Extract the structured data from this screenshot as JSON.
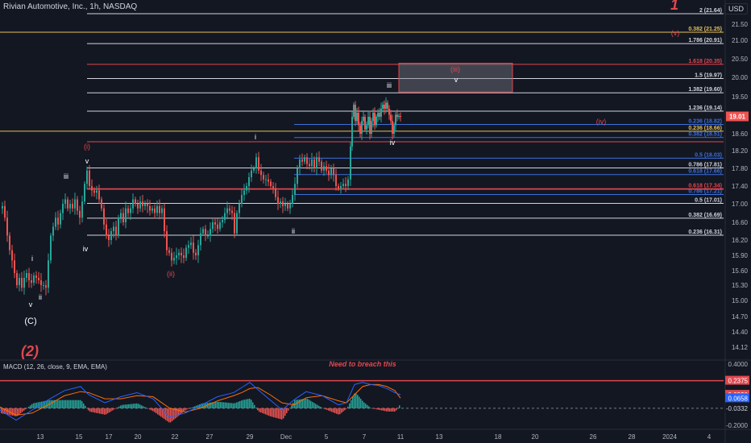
{
  "header": {
    "symbol_line": "Rivian Automotive, Inc., 1h, NASDAQ",
    "currency": "USD"
  },
  "chart_data": {
    "type": "candlestick",
    "price_axis": {
      "ticks": [
        "21.50",
        "21.00",
        "20.50",
        "20.00",
        "19.50",
        "19.00",
        "18.60",
        "18.20",
        "17.80",
        "17.40",
        "17.00",
        "16.60",
        "16.20",
        "15.90",
        "15.60",
        "15.30",
        "15.00",
        "14.70",
        "14.40",
        "14.12"
      ],
      "last_price": "19.01"
    },
    "x_axis": {
      "ticks": [
        "13",
        "15",
        "17",
        "20",
        "22",
        "27",
        "29",
        "Dec",
        "5",
        "7",
        "11",
        "13",
        "18",
        "20",
        "26",
        "28",
        "2024",
        "4"
      ]
    },
    "fib_levels": [
      {
        "label": "2 (21.64)",
        "price": 21.64,
        "color": "#d1d4dc"
      },
      {
        "label": "0.382 (21.25)",
        "price": 21.25,
        "color": "#e5c15a"
      },
      {
        "label": "1.786 (20.91)",
        "price": 20.91,
        "color": "#d1d4dc"
      },
      {
        "label": "1.618 (20.35)",
        "price": 20.35,
        "color": "#e0474f"
      },
      {
        "label": "1.5 (19.97)",
        "price": 19.97,
        "color": "#d1d4dc"
      },
      {
        "label": "1.382 (19.60)",
        "price": 19.6,
        "color": "#d1d4dc"
      },
      {
        "label": "1.236 (19.14)",
        "price": 19.14,
        "color": "#d1d4dc"
      },
      {
        "label": "0.236 (18.82)",
        "price": 18.82,
        "color": "#3d6fd9"
      },
      {
        "label": "0.236 (18.66)",
        "price": 18.66,
        "color": "#e5c15a"
      },
      {
        "label": "0.382 (18.51)",
        "price": 18.51,
        "color": "#3d6fd9"
      },
      {
        "label": "0.5 (18.03)",
        "price": 18.03,
        "color": "#3d6fd9"
      },
      {
        "label": "0.786 (17.81)",
        "price": 17.81,
        "color": "#d1d4dc"
      },
      {
        "label": "0.618 (17.66)",
        "price": 17.66,
        "color": "#3d6fd9"
      },
      {
        "label": "0.618 (17.34)",
        "price": 17.34,
        "color": "#e0474f"
      },
      {
        "label": "0.786 (17.21)",
        "price": 17.21,
        "color": "#3d6fd9"
      },
      {
        "label": "0.5 (17.01)",
        "price": 17.01,
        "color": "#d1d4dc"
      },
      {
        "label": "0.382 (16.69)",
        "price": 16.69,
        "color": "#d1d4dc"
      },
      {
        "label": "0.236 (16.31)",
        "price": 16.31,
        "color": "#d1d4dc"
      }
    ],
    "wave_labels": [
      {
        "text": "1",
        "price": 22.0,
        "color": "#e0474f",
        "style": "italic-bold"
      },
      {
        "text": "(v)",
        "price": 21.15,
        "color": "#e0474f",
        "style": "normal"
      },
      {
        "text": "(iii)",
        "price": 20.2,
        "color": "#e0474f",
        "style": "normal"
      },
      {
        "text": "v",
        "price": 19.95,
        "color": "#ffffff",
        "style": "normal"
      },
      {
        "text": "iii",
        "price": 19.75,
        "color": "#ffffff",
        "style": "normal"
      },
      {
        "text": "(iv)",
        "price": 18.75,
        "color": "#e0474f",
        "style": "normal"
      },
      {
        "text": "iv",
        "price": 18.4,
        "color": "#ffffff",
        "style": "normal"
      },
      {
        "text": "i",
        "price": 18.47,
        "color": "#ffffff",
        "style": "normal"
      },
      {
        "text": "(i)",
        "price": 18.3,
        "color": "#e0474f",
        "style": "normal"
      },
      {
        "text": "v",
        "price": 17.97,
        "color": "#ffffff",
        "style": "normal"
      },
      {
        "text": "iii",
        "price": 17.82,
        "color": "#ffffff",
        "style": "normal"
      },
      {
        "text": "ii",
        "price": 16.4,
        "color": "#ffffff",
        "style": "normal"
      },
      {
        "text": "iv",
        "price": 15.95,
        "color": "#ffffff",
        "style": "normal"
      },
      {
        "text": "i",
        "price": 15.85,
        "color": "#ffffff",
        "style": "normal"
      },
      {
        "text": "(ii)",
        "price": 15.6,
        "color": "#e0474f",
        "style": "normal"
      },
      {
        "text": "ii",
        "price": 15.17,
        "color": "#ffffff",
        "style": "normal"
      },
      {
        "text": "v",
        "price": 15.05,
        "color": "#ffffff",
        "style": "normal"
      },
      {
        "text": "(C)",
        "price": 14.72,
        "color": "#ffffff",
        "style": "normal"
      },
      {
        "text": "(2)",
        "price": 14.15,
        "color": "#e0474f",
        "style": "italic-bold"
      }
    ],
    "candles": {
      "path": [
        [
          0,
          16.9
        ],
        [
          3,
          16.95
        ],
        [
          6,
          16.7
        ],
        [
          9,
          16.3
        ],
        [
          12,
          16.0
        ],
        [
          15,
          15.8
        ],
        [
          18,
          15.55
        ],
        [
          21,
          15.3
        ],
        [
          24,
          15.45
        ],
        [
          27,
          15.25
        ],
        [
          30,
          15.45
        ],
        [
          33,
          15.55
        ],
        [
          36,
          15.4
        ],
        [
          39,
          15.35
        ],
        [
          42,
          15.5
        ],
        [
          45,
          15.45
        ],
        [
          48,
          15.4
        ],
        [
          51,
          15.3
        ],
        [
          54,
          15.3
        ],
        [
          57,
          15.25
        ],
        [
          60,
          15.8
        ],
        [
          63,
          16.3
        ],
        [
          66,
          16.5
        ],
        [
          69,
          16.7
        ],
        [
          72,
          16.55
        ],
        [
          75,
          16.8
        ],
        [
          78,
          17.0
        ],
        [
          81,
          17.1
        ],
        [
          84,
          16.9
        ],
        [
          87,
          17.0
        ],
        [
          90,
          16.9
        ],
        [
          93,
          17.1
        ],
        [
          96,
          16.85
        ],
        [
          99,
          16.7
        ],
        [
          102,
          17.05
        ],
        [
          105,
          17.45
        ],
        [
          108,
          17.75
        ],
        [
          111,
          17.4
        ],
        [
          114,
          17.3
        ],
        [
          117,
          17.25
        ],
        [
          120,
          17.3
        ],
        [
          123,
          17.1
        ],
        [
          126,
          16.9
        ],
        [
          129,
          16.55
        ],
        [
          132,
          16.3
        ],
        [
          135,
          16.2
        ],
        [
          138,
          16.4
        ],
        [
          141,
          16.5
        ],
        [
          144,
          16.3
        ],
        [
          147,
          16.7
        ],
        [
          150,
          16.8
        ],
        [
          153,
          16.6
        ],
        [
          156,
          16.9
        ],
        [
          159,
          16.8
        ],
        [
          162,
          16.9
        ],
        [
          165,
          17.1
        ],
        [
          168,
          17.0
        ],
        [
          171,
          16.9
        ],
        [
          174,
          17.05
        ],
        [
          177,
          16.95
        ],
        [
          180,
          17.0
        ],
        [
          183,
          16.95
        ],
        [
          186,
          16.85
        ],
        [
          189,
          16.9
        ],
        [
          192,
          16.8
        ],
        [
          195,
          16.95
        ],
        [
          198,
          16.8
        ],
        [
          201,
          16.9
        ],
        [
          204,
          16.4
        ],
        [
          207,
          16.0
        ],
        [
          210,
          15.95
        ],
        [
          213,
          15.8
        ],
        [
          216,
          15.85
        ],
        [
          219,
          15.9
        ],
        [
          222,
          15.95
        ],
        [
          225,
          15.9
        ],
        [
          228,
          15.85
        ],
        [
          231,
          16.05
        ],
        [
          234,
          16.1
        ],
        [
          237,
          16.15
        ],
        [
          240,
          15.95
        ],
        [
          243,
          15.9
        ],
        [
          246,
          16.1
        ],
        [
          249,
          16.35
        ],
        [
          252,
          16.45
        ],
        [
          255,
          16.3
        ],
        [
          258,
          16.3
        ],
        [
          261,
          16.45
        ],
        [
          264,
          16.6
        ],
        [
          267,
          16.55
        ],
        [
          270,
          16.45
        ],
        [
          273,
          16.6
        ],
        [
          276,
          16.65
        ],
        [
          279,
          16.8
        ],
        [
          282,
          16.9
        ],
        [
          285,
          16.85
        ],
        [
          288,
          16.8
        ],
        [
          291,
          16.35
        ],
        [
          294,
          16.8
        ],
        [
          297,
          17.0
        ],
        [
          300,
          17.2
        ],
        [
          303,
          17.3
        ],
        [
          306,
          17.4
        ],
        [
          309,
          17.6
        ],
        [
          312,
          17.75
        ],
        [
          315,
          17.8
        ],
        [
          318,
          18.05
        ],
        [
          321,
          17.75
        ],
        [
          324,
          17.65
        ],
        [
          327,
          17.55
        ],
        [
          330,
          17.55
        ],
        [
          333,
          17.5
        ],
        [
          336,
          17.4
        ],
        [
          339,
          17.35
        ],
        [
          342,
          17.15
        ],
        [
          345,
          17.0
        ],
        [
          348,
          17.05
        ],
        [
          351,
          16.95
        ],
        [
          354,
          17.0
        ],
        [
          357,
          16.9
        ],
        [
          360,
          17.0
        ],
        [
          363,
          17.2
        ],
        [
          366,
          17.45
        ],
        [
          369,
          17.8
        ],
        [
          372,
          18.0
        ],
        [
          375,
          17.95
        ],
        [
          378,
          18.05
        ],
        [
          381,
          17.9
        ],
        [
          384,
          17.85
        ],
        [
          387,
          18.0
        ],
        [
          390,
          17.8
        ],
        [
          393,
          18.05
        ],
        [
          396,
          17.95
        ],
        [
          399,
          17.75
        ],
        [
          402,
          17.85
        ],
        [
          405,
          17.75
        ],
        [
          408,
          17.65
        ],
        [
          411,
          17.8
        ],
        [
          414,
          17.65
        ],
        [
          417,
          17.4
        ],
        [
          420,
          17.35
        ],
        [
          423,
          17.4
        ],
        [
          426,
          17.45
        ],
        [
          429,
          17.4
        ],
        [
          432,
          17.55
        ],
        [
          435,
          18.3
        ],
        [
          437,
          19.0
        ],
        [
          439,
          19.3
        ],
        [
          441,
          18.9
        ],
        [
          443,
          19.1
        ],
        [
          445,
          18.8
        ],
        [
          447,
          18.6
        ],
        [
          449,
          18.9
        ],
        [
          451,
          19.0
        ],
        [
          453,
          18.7
        ],
        [
          455,
          18.8
        ],
        [
          457,
          19.0
        ],
        [
          459,
          18.6
        ],
        [
          461,
          18.9
        ],
        [
          463,
          19.1
        ],
        [
          465,
          18.8
        ],
        [
          467,
          19.0
        ],
        [
          469,
          19.1
        ],
        [
          471,
          19.0
        ],
        [
          473,
          19.2
        ],
        [
          475,
          19.3
        ],
        [
          477,
          19.2
        ],
        [
          479,
          19.35
        ],
        [
          481,
          19.2
        ],
        [
          483,
          19.05
        ],
        [
          485,
          18.9
        ],
        [
          487,
          18.6
        ],
        [
          489,
          18.8
        ],
        [
          491,
          19.05
        ],
        [
          493,
          19.0
        ],
        [
          495,
          19.02
        ],
        [
          497,
          19.01
        ]
      ]
    },
    "annotation_box": {
      "from_x": 495,
      "to_x": 636,
      "price_top": 20.38,
      "price_bottom": 19.62
    },
    "macd": {
      "title": "MACD (12, 26, close, 9, EMA, EMA)",
      "note": "Need to breach this",
      "ticks": [
        "0.4000",
        "0.2375",
        "0.0990",
        "0.0658",
        "0.0332",
        "-0.2000"
      ],
      "resistance": 0.2375,
      "zero": -0.0332,
      "tags": [
        {
          "text": "0.2375",
          "value": 0.2375,
          "color": "#e0474f"
        },
        {
          "text": "0.0990",
          "value": 0.099,
          "color": "#e0474f"
        },
        {
          "text": "0.0658",
          "value": 0.0658,
          "color": "#2962ff"
        },
        {
          "text": "-0.0332",
          "value": -0.0332,
          "color": "#131722"
        }
      ],
      "macd_line": [
        [
          0,
          -0.05
        ],
        [
          20,
          -0.15
        ],
        [
          40,
          -0.05
        ],
        [
          60,
          0.05
        ],
        [
          80,
          0.14
        ],
        [
          100,
          0.18
        ],
        [
          110,
          0.1
        ],
        [
          130,
          0.02
        ],
        [
          150,
          0.08
        ],
        [
          170,
          0.12
        ],
        [
          190,
          0.06
        ],
        [
          210,
          -0.12
        ],
        [
          230,
          -0.08
        ],
        [
          250,
          0.0
        ],
        [
          270,
          0.08
        ],
        [
          290,
          0.12
        ],
        [
          300,
          0.17
        ],
        [
          310,
          0.22
        ],
        [
          320,
          0.15
        ],
        [
          335,
          0.05
        ],
        [
          350,
          -0.05
        ],
        [
          365,
          0.05
        ],
        [
          380,
          0.13
        ],
        [
          400,
          0.09
        ],
        [
          420,
          0.0
        ],
        [
          430,
          0.02
        ],
        [
          440,
          0.2
        ],
        [
          450,
          0.22
        ],
        [
          460,
          0.2
        ],
        [
          470,
          0.19
        ],
        [
          480,
          0.16
        ],
        [
          490,
          0.12
        ],
        [
          497,
          0.099
        ]
      ],
      "signal_line": [
        [
          0,
          -0.02
        ],
        [
          20,
          -0.1
        ],
        [
          40,
          -0.08
        ],
        [
          60,
          0.0
        ],
        [
          80,
          0.09
        ],
        [
          100,
          0.13
        ],
        [
          110,
          0.12
        ],
        [
          130,
          0.06
        ],
        [
          150,
          0.06
        ],
        [
          170,
          0.09
        ],
        [
          190,
          0.08
        ],
        [
          210,
          -0.03
        ],
        [
          230,
          -0.07
        ],
        [
          250,
          -0.03
        ],
        [
          270,
          0.04
        ],
        [
          290,
          0.09
        ],
        [
          300,
          0.12
        ],
        [
          310,
          0.16
        ],
        [
          320,
          0.17
        ],
        [
          335,
          0.1
        ],
        [
          350,
          0.02
        ],
        [
          365,
          0.0
        ],
        [
          380,
          0.07
        ],
        [
          400,
          0.09
        ],
        [
          420,
          0.04
        ],
        [
          430,
          0.02
        ],
        [
          440,
          0.1
        ],
        [
          450,
          0.18
        ],
        [
          460,
          0.2
        ],
        [
          470,
          0.2
        ],
        [
          480,
          0.18
        ],
        [
          490,
          0.14
        ],
        [
          497,
          0.0658
        ]
      ]
    }
  }
}
